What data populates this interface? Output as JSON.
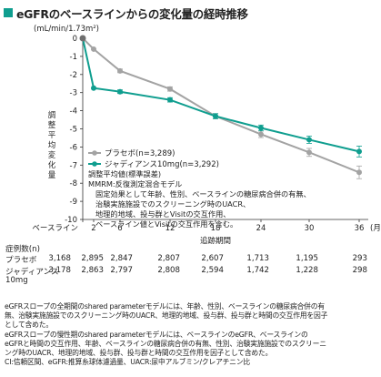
{
  "title": "eGFRのベースラインからの変化量の経時推移",
  "colors": {
    "accent": "#0f9e8f",
    "placebo": "#a3a3a3",
    "drug": "#0f9e8f"
  },
  "chart_data": {
    "type": "line",
    "ylabel": "調整平均変化量",
    "yunit": "(mL/min/1.73m²)",
    "xlabel": "追跡期間",
    "xunit": "(月)",
    "ylim": [
      -10,
      0
    ],
    "yticks": [
      0,
      -1,
      -2,
      -3,
      -4,
      -5,
      -6,
      -7,
      -8,
      -9,
      -10
    ],
    "x": [
      0,
      2,
      6,
      12,
      18,
      24,
      30,
      36
    ],
    "xtick_labels": [
      "ベースライン",
      "2",
      "6",
      "12",
      "18",
      "24",
      "30",
      "36"
    ],
    "series": [
      {
        "name": "プラセボ",
        "n": "(n=3,289)",
        "values": [
          0,
          -0.6,
          -1.8,
          -2.8,
          -4.3,
          -5.3,
          -6.3,
          -7.4
        ],
        "err": [
          0.05,
          0.08,
          0.1,
          0.12,
          0.14,
          0.18,
          0.22,
          0.35
        ]
      },
      {
        "name": "ジャディアンス10mg",
        "n": "(n=3,292)",
        "values": [
          0,
          -2.75,
          -2.95,
          -3.4,
          -4.3,
          -4.95,
          -5.6,
          -6.25
        ],
        "err": [
          0.05,
          0.08,
          0.1,
          0.12,
          0.14,
          0.16,
          0.2,
          0.3
        ]
      }
    ],
    "annotation_lines": [
      "調整平均値(標準誤差)",
      "MMRM:反復測定混合モデル",
      "固定効果として年齢、性別、ベースラインの糖尿病合併の有無、",
      "治験実施施設でのスクリーニング時のUACR、",
      "地理的地域、投与群とVisitの交互作用、",
      "ベースライン値とVisitの交互作用を含む。"
    ]
  },
  "table": {
    "header": "症例数(n)",
    "rows": [
      {
        "label": "プラセボ",
        "values": [
          "3,168",
          "2,895",
          "2,847",
          "2,807",
          "2,607",
          "1,713",
          "1,195",
          "293"
        ]
      },
      {
        "label": "ジャディアンス",
        "label2": "10mg",
        "values": [
          "3,178",
          "2,863",
          "2,797",
          "2,808",
          "2,594",
          "1,742",
          "1,228",
          "298"
        ]
      }
    ]
  },
  "footnotes": [
    "eGFRスロープの全期間のshared parameterモデルには、年齢、性別、ベースラインの糖尿病合併の有",
    "無、治験実施施設でのスクリーニング時のUACR、地理的地域、投与群、投与群と時間の交互作用を因子",
    "として含めた。",
    "eGFRスロープの慢性期のshared parameterモデルには、ベースラインのeGFR、ベースラインの",
    "eGFRと時間の交互作用、年齢、ベースラインの糖尿病合併の有無、性別、治験実施施設でのスクリーニ",
    "ング時のUACR、地理的地域、投与群、投与群と時間の交互作用を因子として含めた。",
    "CI:信頼区間、eGFR:推算糸球体濾過量、UACR:尿中アルブミン/クレアチニン比"
  ]
}
